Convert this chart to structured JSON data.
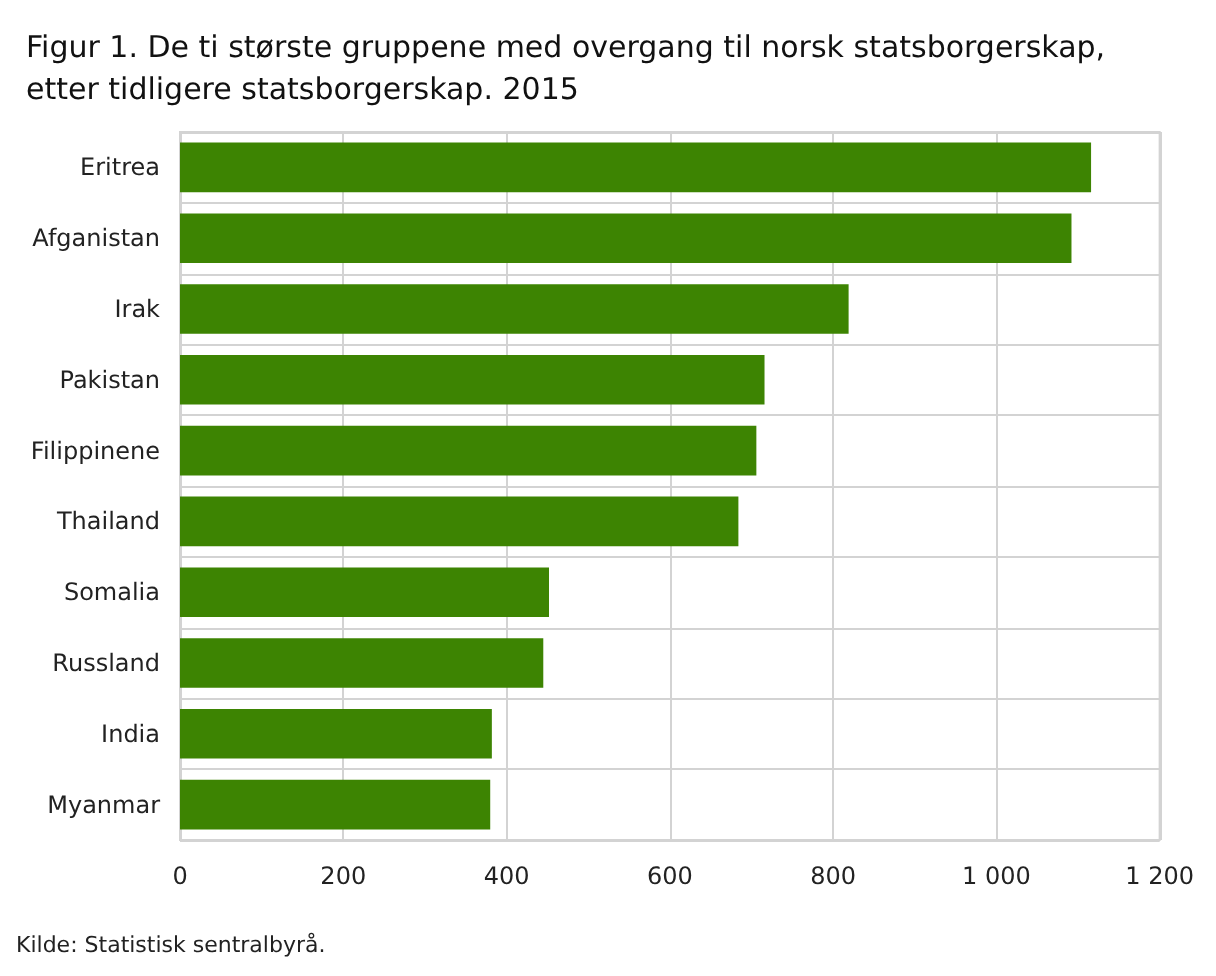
{
  "chart_data": {
    "type": "bar",
    "orientation": "horizontal",
    "title": "Figur 1. De ti største gruppene med overgang til norsk statsborgerskap, etter tidligere statsborgerskap. 2015",
    "categories": [
      "Eritrea",
      "Afganistan",
      "Irak",
      "Pakistan",
      "Filippinene",
      "Thailand",
      "Somalia",
      "Russland",
      "India",
      "Myanmar"
    ],
    "values": [
      1116,
      1092,
      819,
      716,
      706,
      684,
      452,
      445,
      382,
      380
    ],
    "color": "#3d8402",
    "xlim": [
      0,
      1200
    ],
    "xticks": [
      0,
      200,
      400,
      600,
      800,
      {
        "value": 1000,
        "label": "1 000"
      },
      {
        "value": 1200,
        "label": "1 200"
      }
    ],
    "grid": true,
    "annotations": [
      "Kilde: Statistisk sentralbyrå."
    ]
  }
}
